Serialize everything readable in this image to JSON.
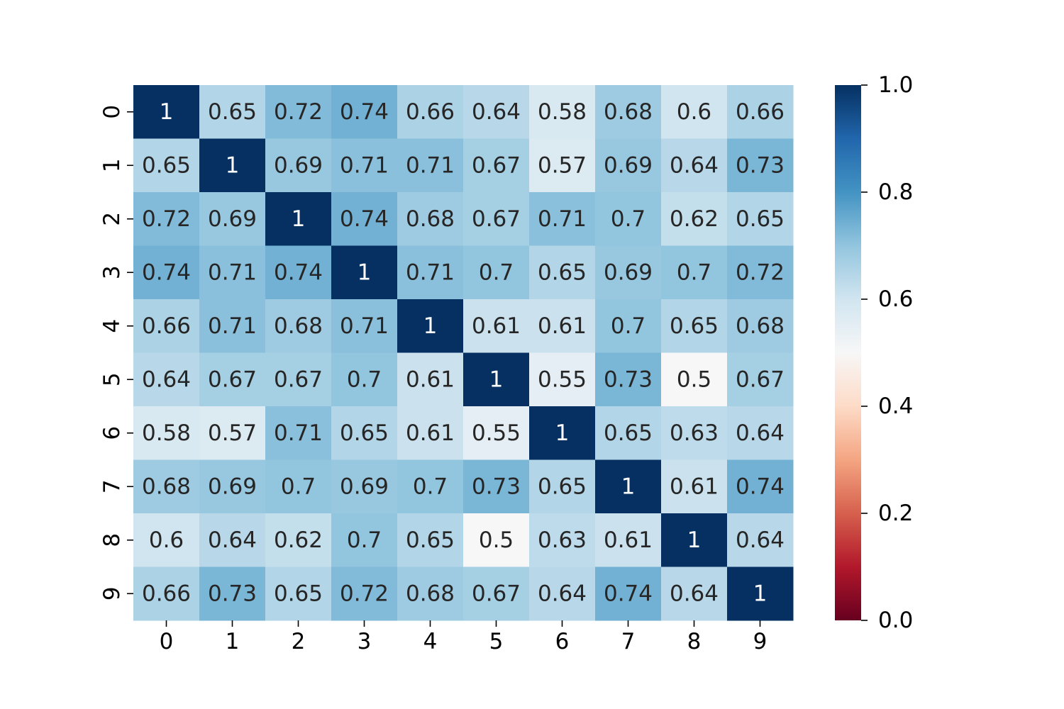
{
  "chart_data": {
    "type": "heatmap",
    "title": "",
    "xlabel": "",
    "ylabel": "",
    "x_labels": [
      "0",
      "1",
      "2",
      "3",
      "4",
      "5",
      "6",
      "7",
      "8",
      "9"
    ],
    "y_labels": [
      "0",
      "1",
      "2",
      "3",
      "4",
      "5",
      "6",
      "7",
      "8",
      "9"
    ],
    "values": [
      [
        1,
        0.65,
        0.72,
        0.74,
        0.66,
        0.64,
        0.58,
        0.68,
        0.6,
        0.66
      ],
      [
        0.65,
        1,
        0.69,
        0.71,
        0.71,
        0.67,
        0.57,
        0.69,
        0.64,
        0.73
      ],
      [
        0.72,
        0.69,
        1,
        0.74,
        0.68,
        0.67,
        0.71,
        0.7,
        0.62,
        0.65
      ],
      [
        0.74,
        0.71,
        0.74,
        1,
        0.71,
        0.7,
        0.65,
        0.69,
        0.7,
        0.72
      ],
      [
        0.66,
        0.71,
        0.68,
        0.71,
        1,
        0.61,
        0.61,
        0.7,
        0.65,
        0.68
      ],
      [
        0.64,
        0.67,
        0.67,
        0.7,
        0.61,
        1,
        0.55,
        0.73,
        0.5,
        0.67
      ],
      [
        0.58,
        0.57,
        0.71,
        0.65,
        0.61,
        0.55,
        1,
        0.65,
        0.63,
        0.64
      ],
      [
        0.68,
        0.69,
        0.7,
        0.69,
        0.7,
        0.73,
        0.65,
        1,
        0.61,
        0.74
      ],
      [
        0.6,
        0.64,
        0.62,
        0.7,
        0.65,
        0.5,
        0.63,
        0.61,
        1,
        0.64
      ],
      [
        0.66,
        0.73,
        0.65,
        0.72,
        0.68,
        0.67,
        0.64,
        0.74,
        0.64,
        1
      ]
    ],
    "colormap": "RdBu",
    "colormap_stops": [
      "#67001f",
      "#b2182b",
      "#d6604d",
      "#f4a582",
      "#fddbc7",
      "#f7f7f7",
      "#d1e5f0",
      "#92c5de",
      "#4393c3",
      "#2166ac",
      "#053061"
    ],
    "vmin": 0.0,
    "vmax": 1.0,
    "colorbar_ticks": [
      "0.0",
      "0.2",
      "0.4",
      "0.6",
      "0.8",
      "1.0"
    ],
    "annotations": true,
    "grid": false
  }
}
